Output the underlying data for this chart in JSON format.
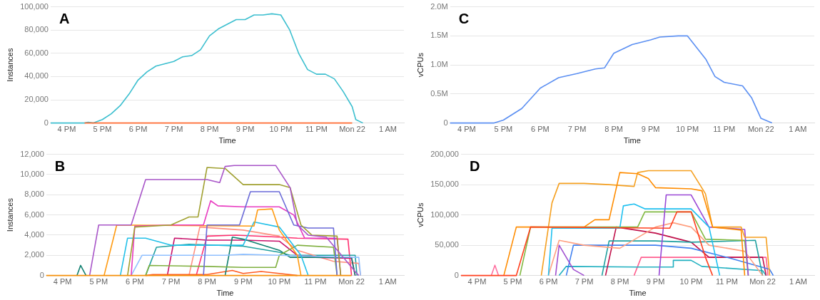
{
  "chart_data": [
    {
      "type": "line",
      "title": "A",
      "xlabel": "Time",
      "ylabel": "Instances",
      "xlim": [
        "--03-21T15:33",
        "--03-22T01:27"
      ],
      "ylim": [
        0,
        100000
      ],
      "xticks": [
        {
          "value": "--03-21T16:00",
          "label": "4 PM"
        },
        {
          "value": "--03-21T17:00",
          "label": "5 PM"
        },
        {
          "value": "--03-21T18:00",
          "label": "6 PM"
        },
        {
          "value": "--03-21T19:00",
          "label": "7 PM"
        },
        {
          "value": "--03-21T20:00",
          "label": "8 PM"
        },
        {
          "value": "--03-21T21:00",
          "label": "9 PM"
        },
        {
          "value": "--03-21T22:00",
          "label": "10 PM"
        },
        {
          "value": "--03-21T23:00",
          "label": "11 PM"
        },
        {
          "value": "--03-22T00:00",
          "label": "Mon 22"
        },
        {
          "value": "--03-22T01:00",
          "label": "1 AM"
        }
      ],
      "yticks": [
        {
          "value": 0,
          "label": "0"
        },
        {
          "value": 20000,
          "label": "20,000"
        },
        {
          "value": 40000,
          "label": "40,000"
        },
        {
          "value": 60000,
          "label": "60,000"
        },
        {
          "value": 80000,
          "label": "80,000"
        },
        {
          "value": 100000,
          "label": "100,000"
        }
      ],
      "grid": "y",
      "legend": false,
      "marker": "none",
      "line_style": "solid",
      "series": [
        {
          "color": "#ff6a30",
          "x": [
            "--03-21T16:30",
            "--03-22T00:00"
          ],
          "values": [
            0,
            0
          ]
        },
        {
          "color": "#3cbfcf",
          "x": [
            "--03-21T15:33",
            "--03-21T16:30",
            "--03-21T16:36",
            "--03-21T16:45",
            "--03-21T17:00",
            "--03-21T17:15",
            "--03-21T17:30",
            "--03-21T17:45",
            "--03-21T18:00",
            "--03-21T18:15",
            "--03-21T18:30",
            "--03-21T18:45",
            "--03-21T19:00",
            "--03-21T19:15",
            "--03-21T19:30",
            "--03-21T19:45",
            "--03-21T20:00",
            "--03-21T20:15",
            "--03-21T20:30",
            "--03-21T20:45",
            "--03-21T21:00",
            "--03-21T21:15",
            "--03-21T21:30",
            "--03-21T21:45",
            "--03-21T22:00",
            "--03-21T22:15",
            "--03-21T22:30",
            "--03-21T22:45",
            "--03-21T23:00",
            "--03-21T23:15",
            "--03-21T23:30",
            "--03-21T23:45",
            "--03-22T00:00",
            "--03-22T00:06",
            "--03-22T00:18"
          ],
          "values": [
            0,
            0,
            700,
            0,
            3000,
            8000,
            15000,
            25000,
            37000,
            44000,
            49000,
            51000,
            53000,
            57000,
            58000,
            63000,
            75000,
            81000,
            85000,
            89000,
            89000,
            93000,
            93000,
            94000,
            93000,
            80000,
            60000,
            46000,
            42000,
            42000,
            38000,
            27000,
            14000,
            3000,
            0
          ]
        }
      ]
    },
    {
      "type": "line",
      "title": "C",
      "xlabel": "Time",
      "ylabel": "vCPUs",
      "xlim": [
        "--03-21T15:33",
        "--03-22T01:27"
      ],
      "ylim": [
        0,
        2000000
      ],
      "xticks": [
        {
          "value": "--03-21T16:00",
          "label": "4 PM"
        },
        {
          "value": "--03-21T17:00",
          "label": "5 PM"
        },
        {
          "value": "--03-21T18:00",
          "label": "6 PM"
        },
        {
          "value": "--03-21T19:00",
          "label": "7 PM"
        },
        {
          "value": "--03-21T20:00",
          "label": "8 PM"
        },
        {
          "value": "--03-21T21:00",
          "label": "9 PM"
        },
        {
          "value": "--03-21T22:00",
          "label": "10 PM"
        },
        {
          "value": "--03-21T23:00",
          "label": "11 PM"
        },
        {
          "value": "--03-22T00:00",
          "label": "Mon 22"
        },
        {
          "value": "--03-22T01:00",
          "label": "1 AM"
        }
      ],
      "yticks": [
        {
          "value": 0,
          "label": "0"
        },
        {
          "value": 500000,
          "label": "0.5M"
        },
        {
          "value": 1000000,
          "label": "1.0M"
        },
        {
          "value": 1500000,
          "label": "1.5M"
        },
        {
          "value": 2000000,
          "label": "2.0M"
        }
      ],
      "grid": "y",
      "legend": false,
      "marker": "none",
      "line_style": "solid",
      "series": [
        {
          "color": "#5b8ff2",
          "x": [
            "--03-21T15:33",
            "--03-21T16:30",
            "--03-21T16:45",
            "--03-21T17:00",
            "--03-21T17:30",
            "--03-21T18:00",
            "--03-21T18:30",
            "--03-21T19:00",
            "--03-21T19:30",
            "--03-21T19:45",
            "--03-21T20:00",
            "--03-21T20:30",
            "--03-21T21:00",
            "--03-21T21:15",
            "--03-21T21:45",
            "--03-21T22:00",
            "--03-21T22:30",
            "--03-21T22:45",
            "--03-21T23:00",
            "--03-21T23:30",
            "--03-21T23:45",
            "--03-22T00:00",
            "--03-22T00:18"
          ],
          "values": [
            0,
            0,
            0,
            50000,
            250000,
            600000,
            780000,
            850000,
            930000,
            950000,
            1200000,
            1350000,
            1430000,
            1480000,
            1500000,
            1500000,
            1100000,
            800000,
            700000,
            640000,
            430000,
            80000,
            0
          ]
        }
      ]
    },
    {
      "type": "line",
      "title": "B",
      "xlabel": "Time",
      "ylabel": "Instances",
      "xlim": [
        "--03-21T15:33",
        "--03-22T01:27"
      ],
      "ylim": [
        0,
        12000
      ],
      "xticks": [
        {
          "value": "--03-21T16:00",
          "label": "4 PM"
        },
        {
          "value": "--03-21T17:00",
          "label": "5 PM"
        },
        {
          "value": "--03-21T18:00",
          "label": "6 PM"
        },
        {
          "value": "--03-21T19:00",
          "label": "7 PM"
        },
        {
          "value": "--03-21T20:00",
          "label": "8 PM"
        },
        {
          "value": "--03-21T21:00",
          "label": "9 PM"
        },
        {
          "value": "--03-21T22:00",
          "label": "10 PM"
        },
        {
          "value": "--03-21T23:00",
          "label": "11 PM"
        },
        {
          "value": "--03-22T00:00",
          "label": "Mon 22"
        },
        {
          "value": "--03-22T01:00",
          "label": "1 AM"
        }
      ],
      "yticks": [
        {
          "value": 0,
          "label": "0"
        },
        {
          "value": 2000,
          "label": "2,000"
        },
        {
          "value": 4000,
          "label": "4,000"
        },
        {
          "value": 6000,
          "label": "6,000"
        },
        {
          "value": 8000,
          "label": "8,000"
        },
        {
          "value": 10000,
          "label": "10,000"
        },
        {
          "value": 12000,
          "label": "12,000"
        }
      ],
      "grid": "y",
      "legend": false,
      "marker": "none",
      "line_style": "solid",
      "series": [
        {
          "color": "#f5900a",
          "x": [
            "--03-21T15:33",
            "--03-22T00:00"
          ],
          "values": [
            0,
            0
          ]
        },
        {
          "color": "#a855c8",
          "x": [
            "--03-21T16:45",
            "--03-21T17:00",
            "--03-21T17:54",
            "--03-21T18:18",
            "--03-21T19:00",
            "--03-21T20:00",
            "--03-21T20:21",
            "--03-21T20:30",
            "--03-21T20:45",
            "--03-21T21:54",
            "--03-21T22:18",
            "--03-21T22:30",
            "--03-21T22:48",
            "--03-21T23:18",
            "--03-22T00:06",
            "--03-22T00:12"
          ],
          "values": [
            0,
            5000,
            5000,
            9500,
            9500,
            9500,
            9200,
            10800,
            10900,
            10900,
            8700,
            5000,
            4000,
            3800,
            400,
            0
          ]
        },
        {
          "color": "#a0a030",
          "x": [
            "--03-21T17:48",
            "--03-21T18:00",
            "--03-21T19:00",
            "--03-21T19:30",
            "--03-21T19:45",
            "--03-21T20:00",
            "--03-21T20:30",
            "--03-21T21:00",
            "--03-21T22:00",
            "--03-21T22:18",
            "--03-21T22:36",
            "--03-21T22:54",
            "--03-21T23:36",
            "--03-21T23:42"
          ],
          "values": [
            0,
            4800,
            5000,
            5800,
            5800,
            10700,
            10600,
            9000,
            9000,
            8700,
            5000,
            4000,
            3900,
            0
          ]
        },
        {
          "color": "#6a6ad8",
          "x": [
            "--03-21T19:54",
            "--03-21T20:00",
            "--03-21T20:54",
            "--03-21T21:12",
            "--03-21T22:00",
            "--03-21T22:24",
            "--03-21T22:48",
            "--03-21T23:30",
            "--03-21T23:36"
          ],
          "values": [
            0,
            5000,
            5000,
            8300,
            8300,
            5000,
            4700,
            4700,
            0
          ]
        },
        {
          "color": "#e83ac0",
          "x": [
            "--03-21T17:54",
            "--03-21T18:00",
            "--03-21T19:00",
            "--03-21T19:54",
            "--03-21T20:06",
            "--03-21T20:18",
            "--03-21T21:00",
            "--03-21T22:00",
            "--03-21T22:24",
            "--03-21T22:42",
            "--03-21T23:36",
            "--03-21T23:42"
          ],
          "values": [
            0,
            4900,
            5000,
            5000,
            7400,
            6900,
            6800,
            6800,
            6000,
            3700,
            3700,
            0
          ]
        },
        {
          "color": "#ff9a10",
          "x": [
            "--03-21T17:09",
            "--03-21T17:30",
            "--03-21T21:18",
            "--03-21T21:24",
            "--03-21T21:48",
            "--03-21T22:00",
            "--03-21T22:30",
            "--03-21T22:36"
          ],
          "values": [
            0,
            5000,
            4900,
            6500,
            6600,
            4500,
            2000,
            0
          ]
        },
        {
          "color": "#22c0e8",
          "x": [
            "--03-21T17:36",
            "--03-21T17:48",
            "--03-21T18:18",
            "--03-21T19:00",
            "--03-21T21:00",
            "--03-21T21:18",
            "--03-21T22:00",
            "--03-21T22:36",
            "--03-21T22:48"
          ],
          "values": [
            0,
            3700,
            3700,
            3000,
            3000,
            5300,
            4800,
            2000,
            0
          ]
        },
        {
          "color": "#90c0ff",
          "x": [
            "--03-21T17:54",
            "--03-21T18:12",
            "--03-21T20:30",
            "--03-21T21:00",
            "--03-21T22:00",
            "--03-21T23:00",
            "--03-22T00:12",
            "--03-22T00:15"
          ],
          "values": [
            0,
            2000,
            2000,
            2100,
            2000,
            1900,
            1800,
            0
          ]
        },
        {
          "color": "#80b040",
          "x": [
            "--03-21T18:18",
            "--03-21T18:24",
            "--03-21T20:00",
            "--03-21T21:00",
            "--03-21T21:54",
            "--03-21T22:00",
            "--03-21T22:30",
            "--03-21T23:30",
            "--03-21T23:36"
          ],
          "values": [
            0,
            1000,
            900,
            800,
            800,
            2000,
            3000,
            2800,
            0
          ]
        },
        {
          "color": "#108070",
          "x": [
            "--03-21T16:24",
            "--03-21T16:30",
            "--03-21T16:39"
          ],
          "values": [
            0,
            1000,
            0
          ]
        },
        {
          "color": "#108070",
          "x": [
            "--03-21T20:30",
            "--03-21T20:42",
            "--03-21T21:00",
            "--03-21T22:00",
            "--03-21T22:18",
            "--03-22T00:00",
            "--03-22T00:06"
          ],
          "values": [
            0,
            3800,
            3600,
            2500,
            1800,
            1800,
            0
          ]
        },
        {
          "color": "#ff5a20",
          "x": [
            "--03-21T18:18",
            "--03-21T18:30",
            "--03-21T20:00",
            "--03-21T20:42",
            "--03-21T21:00",
            "--03-21T21:30",
            "--03-21T22:00",
            "--03-21T22:30"
          ],
          "values": [
            0,
            100,
            100,
            500,
            200,
            400,
            200,
            0
          ]
        },
        {
          "color": "#c8106a",
          "x": [
            "--03-21T18:54",
            "--03-21T19:06",
            "--03-21T20:00",
            "--03-21T21:00",
            "--03-21T22:00",
            "--03-21T22:30",
            "--03-21T23:00",
            "--03-22T00:00",
            "--03-22T00:06"
          ],
          "values": [
            0,
            3700,
            3500,
            3500,
            3400,
            2000,
            1800,
            1700,
            0
          ]
        },
        {
          "color": "#ff9080",
          "x": [
            "--03-21T19:30",
            "--03-21T19:48",
            "--03-21T21:00",
            "--03-21T22:00",
            "--03-21T22:30",
            "--03-21T23:30",
            "--03-22T00:12",
            "--03-22T00:15"
          ],
          "values": [
            0,
            4800,
            4500,
            3900,
            2500,
            1400,
            1200,
            0
          ]
        },
        {
          "color": "#20a0a0",
          "x": [
            "--03-21T18:18",
            "--03-21T18:36",
            "--03-21T19:30",
            "--03-21T21:00",
            "--03-21T22:00",
            "--03-21T22:18",
            "--03-22T00:06",
            "--03-22T00:09"
          ],
          "values": [
            0,
            2800,
            3100,
            2900,
            2300,
            2000,
            2000,
            0
          ]
        },
        {
          "color": "#ff3070",
          "x": [
            "--03-21T19:42",
            "--03-21T20:00",
            "--03-21T20:48",
            "--03-21T22:00",
            "--03-21T22:30",
            "--03-21T23:54",
            "--03-22T00:00"
          ],
          "values": [
            0,
            3900,
            4000,
            3800,
            3700,
            3600,
            0
          ]
        }
      ]
    },
    {
      "type": "line",
      "title": "D",
      "xlabel": "Time",
      "ylabel": "vCPUs",
      "xlim": [
        "--03-21T15:33",
        "--03-22T01:27"
      ],
      "ylim": [
        0,
        200000
      ],
      "xticks": [
        {
          "value": "--03-21T16:00",
          "label": "4 PM"
        },
        {
          "value": "--03-21T17:00",
          "label": "5 PM"
        },
        {
          "value": "--03-21T18:00",
          "label": "6 PM"
        },
        {
          "value": "--03-21T19:00",
          "label": "7 PM"
        },
        {
          "value": "--03-21T20:00",
          "label": "8 PM"
        },
        {
          "value": "--03-21T21:00",
          "label": "9 PM"
        },
        {
          "value": "--03-21T22:00",
          "label": "10 PM"
        },
        {
          "value": "--03-21T23:00",
          "label": "11 PM"
        },
        {
          "value": "--03-22T00:00",
          "label": "Mon 22"
        },
        {
          "value": "--03-22T01:00",
          "label": "1 AM"
        }
      ],
      "yticks": [
        {
          "value": 0,
          "label": "0"
        },
        {
          "value": 50000,
          "label": "50,000"
        },
        {
          "value": 100000,
          "label": "100,000"
        },
        {
          "value": 150000,
          "label": "150,000"
        },
        {
          "value": 200000,
          "label": "200,000"
        }
      ],
      "grid": "y",
      "legend": false,
      "marker": "none",
      "line_style": "solid",
      "series": [
        {
          "color": "#ff4020",
          "x": [
            "--03-21T15:33",
            "--03-21T17:06",
            "--03-21T17:30",
            "--03-21T21:24",
            "--03-21T21:36",
            "--03-21T22:00",
            "--03-21T22:24",
            "--03-21T22:36"
          ],
          "values": [
            0,
            0,
            80000,
            78000,
            105000,
            105000,
            30000,
            0
          ]
        },
        {
          "color": "#ff8c00",
          "x": [
            "--03-21T16:45",
            "--03-21T17:06",
            "--03-21T19:00",
            "--03-21T19:18",
            "--03-21T19:42",
            "--03-21T20:00",
            "--03-21T20:30",
            "--03-21T20:48",
            "--03-21T21:00",
            "--03-21T22:00",
            "--03-21T22:18",
            "--03-21T22:36",
            "--03-21T23:24",
            "--03-21T23:30"
          ],
          "values": [
            0,
            80000,
            80000,
            92000,
            92000,
            170000,
            168000,
            160000,
            145000,
            143000,
            140000,
            80000,
            75000,
            0
          ]
        },
        {
          "color": "#f5a020",
          "x": [
            "--03-21T17:48",
            "--03-21T18:06",
            "--03-21T18:18",
            "--03-21T19:00",
            "--03-21T19:42",
            "--03-21T20:24",
            "--03-21T20:30",
            "--03-21T20:48",
            "--03-21T22:00",
            "--03-21T22:24",
            "--03-21T22:36",
            "--03-21T23:24",
            "--03-21T23:30",
            "--03-22T00:06",
            "--03-22T00:12"
          ],
          "values": [
            0,
            120000,
            152000,
            152000,
            150000,
            147000,
            170000,
            173000,
            173000,
            135000,
            80000,
            80000,
            63000,
            63000,
            0
          ]
        },
        {
          "color": "#1ec0f0",
          "x": [
            "--03-21T18:00",
            "--03-21T18:06",
            "--03-21T20:00",
            "--03-21T20:06",
            "--03-21T20:24",
            "--03-21T20:42",
            "--03-21T22:00",
            "--03-21T22:30",
            "--03-21T22:48"
          ],
          "values": [
            0,
            78000,
            78000,
            115000,
            118000,
            110000,
            110000,
            80000,
            0
          ]
        },
        {
          "color": "#a050d0",
          "x": [
            "--03-21T18:12",
            "--03-21T18:18",
            "--03-21T18:42",
            "--03-21T19:00"
          ],
          "values": [
            0,
            50000,
            10000,
            0
          ]
        },
        {
          "color": "#9a48d6",
          "x": [
            "--03-21T21:06",
            "--03-21T21:18",
            "--03-21T22:00",
            "--03-21T22:30",
            "--03-21T23:30",
            "--03-21T23:36"
          ],
          "values": [
            0,
            133000,
            133000,
            80000,
            76000,
            0
          ]
        },
        {
          "color": "#80b840",
          "x": [
            "--03-21T17:12",
            "--03-21T17:30",
            "--03-21T20:30",
            "--03-21T20:42",
            "--03-21T22:00",
            "--03-21T22:24",
            "--03-21T23:30",
            "--03-21T23:36"
          ],
          "values": [
            0,
            80000,
            80000,
            105000,
            105000,
            60000,
            58000,
            0
          ]
        },
        {
          "color": "#ffa080",
          "x": [
            "--03-21T18:00",
            "--03-21T18:18",
            "--03-21T19:00",
            "--03-21T20:00",
            "--03-21T21:00",
            "--03-21T21:30",
            "--03-21T22:00",
            "--03-21T22:30",
            "--03-21T23:30",
            "--03-22T00:00"
          ],
          "values": [
            0,
            58000,
            50000,
            45000,
            80000,
            87000,
            80000,
            50000,
            40000,
            0
          ]
        },
        {
          "color": "#20a0a0",
          "x": [
            "--03-21T19:30",
            "--03-21T19:42",
            "--03-21T21:00",
            "--03-21T22:00",
            "--03-21T23:48",
            "--03-22T00:00"
          ],
          "values": [
            0,
            57000,
            57000,
            55000,
            58000,
            0
          ]
        },
        {
          "color": "#4080f0",
          "x": [
            "--03-21T18:30",
            "--03-21T18:42",
            "--03-21T21:00",
            "--03-21T22:00",
            "--03-21T23:00",
            "--03-22T00:12",
            "--03-22T00:18"
          ],
          "values": [
            0,
            50000,
            50000,
            45000,
            30000,
            10000,
            0
          ]
        },
        {
          "color": "#c0104a",
          "x": [
            "--03-21T19:36",
            "--03-21T19:54",
            "--03-21T21:00",
            "--03-21T22:00",
            "--03-21T22:30",
            "--03-22T00:00",
            "--03-22T00:06"
          ],
          "values": [
            0,
            80000,
            70000,
            55000,
            30000,
            30000,
            0
          ]
        },
        {
          "color": "#20b0c0",
          "x": [
            "--03-21T18:18",
            "--03-21T18:30",
            "--03-21T20:30",
            "--03-21T21:30",
            "--03-21T21:30",
            "--03-21T22:00",
            "--03-21T22:18",
            "--03-22T00:00",
            "--03-22T00:06"
          ],
          "values": [
            0,
            15000,
            14000,
            14000,
            25000,
            25000,
            15000,
            8000,
            0
          ]
        },
        {
          "color": "#ff6090",
          "x": [
            "--03-21T20:24",
            "--03-21T20:36",
            "--03-21T22:00",
            "--03-21T23:00",
            "--03-22T00:06",
            "--03-22T00:09"
          ],
          "values": [
            0,
            30000,
            30000,
            30000,
            30000,
            0
          ]
        },
        {
          "color": "#ff70a0",
          "x": [
            "--03-21T16:24",
            "--03-21T16:30",
            "--03-21T16:36"
          ],
          "values": [
            0,
            17000,
            0
          ]
        }
      ]
    }
  ]
}
